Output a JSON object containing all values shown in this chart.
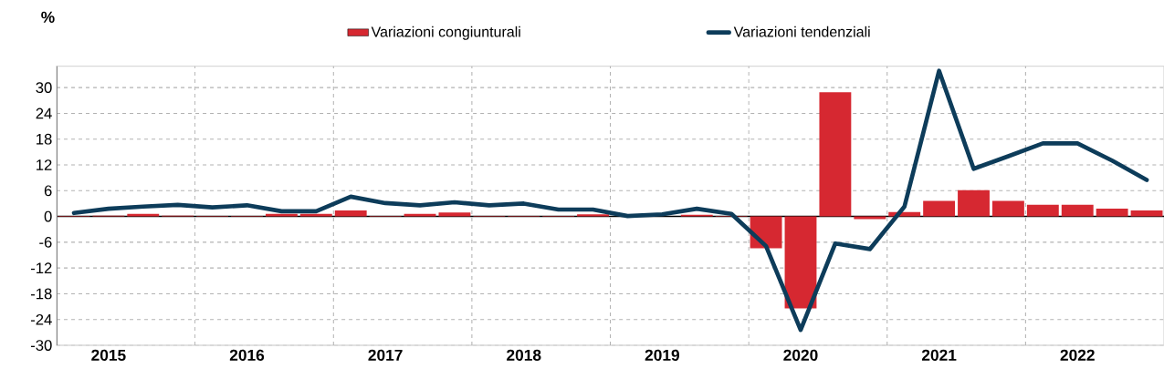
{
  "chart_data": {
    "type": "bar",
    "ylabel": "%",
    "categories": [
      null,
      "2015",
      null,
      null,
      null,
      "2016",
      null,
      null,
      null,
      "2017",
      null,
      null,
      null,
      "2018",
      null,
      null,
      null,
      "2019",
      null,
      null,
      null,
      "2020",
      null,
      null,
      null,
      "2021",
      null,
      null,
      null,
      "2022",
      null,
      null
    ],
    "series": [
      {
        "name": "Variazioni congiunturali",
        "color": "#d62831",
        "values": [
          0.1,
          0.2,
          0.6,
          0.2,
          0.1,
          0.1,
          0.6,
          0.6,
          1.4,
          0.1,
          0.6,
          0.9,
          0.1,
          0.1,
          0.1,
          0.5,
          null,
          null,
          0.4,
          0.1,
          -7.4,
          -21.4,
          28.9,
          -0.6,
          1.0,
          3.6,
          6.1,
          3.6,
          2.7,
          2.7,
          1.8,
          1.4
        ]
      },
      {
        "name": "Variazioni tendenziali",
        "type": "line",
        "color": "#0d3c5a",
        "values": [
          0.8,
          1.8,
          2.3,
          2.7,
          2.1,
          2.6,
          1.2,
          1.2,
          4.6,
          3.1,
          2.6,
          3.3,
          2.6,
          3.0,
          1.6,
          1.6,
          0.1,
          0.5,
          1.8,
          0.6,
          -6.9,
          -26.4,
          -6.3,
          -7.6,
          2.3,
          33.9,
          11.1,
          14.0,
          17.0,
          17.0,
          13.0,
          8.5
        ]
      }
    ],
    "ylim": [
      -30,
      35
    ],
    "yticks": [
      -30,
      -24,
      -18,
      -12,
      -6,
      0,
      6,
      12,
      18,
      24,
      30
    ],
    "grid": true,
    "legend": "top"
  }
}
